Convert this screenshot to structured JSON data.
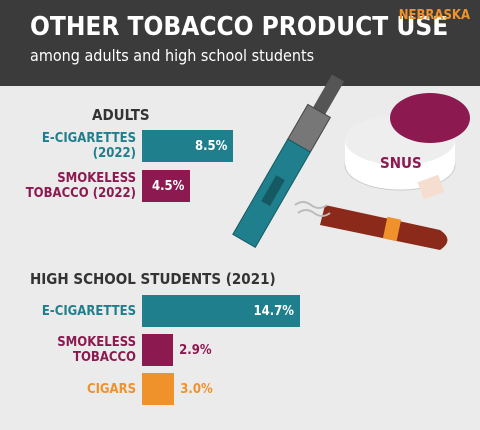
{
  "header": {
    "title": "OTHER TOBACCO PRODUCT USE",
    "subtitle": "among adults and high school students",
    "state": "NEBRASKA"
  },
  "chart_data": [
    {
      "type": "bar",
      "title": "ADULTS",
      "categories": [
        "E-CIGARETTES\n(2022)",
        "SMOKELESS\nTOBACCO (2022)"
      ],
      "values": [
        8.5,
        4.5
      ],
      "value_labels": [
        "8.5%",
        "4.5%"
      ],
      "colors": [
        "#1f7f8c",
        "#8c1a50"
      ]
    },
    {
      "type": "bar",
      "title": "HIGH SCHOOL STUDENTS (2021)",
      "categories": [
        "E-CIGARETTES",
        "SMOKELESS\nTOBACCO",
        "CIGARS"
      ],
      "values": [
        14.7,
        2.9,
        3.0
      ],
      "value_labels": [
        "14.7%",
        "2.9%",
        "3.0%"
      ],
      "colors": [
        "#1f7f8c",
        "#8c1a50",
        "#f0922b"
      ]
    }
  ],
  "illustration": {
    "tin_label": "SNUS"
  }
}
